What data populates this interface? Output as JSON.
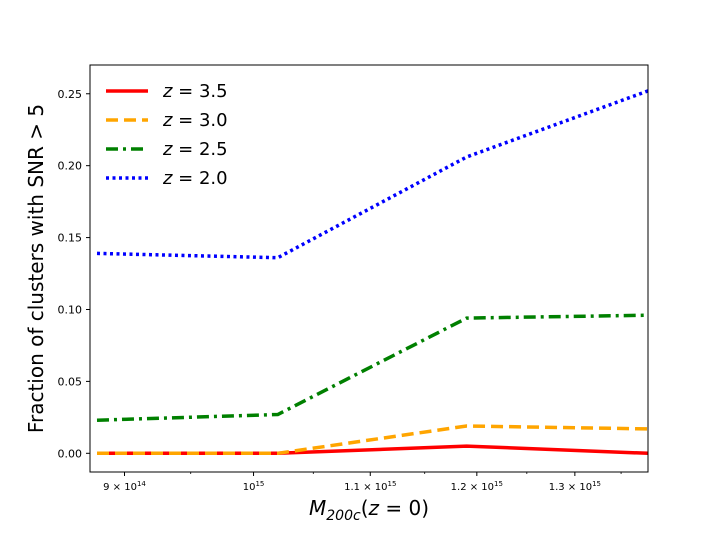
{
  "chart_data": {
    "type": "line",
    "title": "",
    "xlabel": "M_{200c}(z = 0)",
    "ylabel": "Fraction of clusters with SNR > 5",
    "x_scale": "log",
    "xlim": [
      875000000000000.0,
      1380000000000000.0
    ],
    "ylim": [
      -0.013,
      0.27
    ],
    "grid": false,
    "legend_position": "upper-left",
    "x": [
      880000000000000.0,
      1020000000000000.0,
      1190000000000000.0,
      1380000000000000.0
    ],
    "xticks": [
      {
        "value": 900000000000000.0,
        "mantissa": "9 × 10",
        "exponent": "14"
      },
      {
        "value": 1000000000000000.0,
        "mantissa": "10",
        "exponent": "15"
      },
      {
        "value": 1100000000000000.0,
        "mantissa": "1.1 × 10",
        "exponent": "15"
      },
      {
        "value": 1200000000000000.0,
        "mantissa": "1.2 × 10",
        "exponent": "15"
      },
      {
        "value": 1300000000000000.0,
        "mantissa": "1.3 × 10",
        "exponent": "15"
      }
    ],
    "yticks": [
      {
        "value": 0.0,
        "label": "0.00"
      },
      {
        "value": 0.05,
        "label": "0.05"
      },
      {
        "value": 0.1,
        "label": "0.10"
      },
      {
        "value": 0.15,
        "label": "0.15"
      },
      {
        "value": 0.2,
        "label": "0.20"
      },
      {
        "value": 0.25,
        "label": "0.25"
      }
    ],
    "series": [
      {
        "name": "z = 3.5",
        "z": "3.5",
        "color": "#ff0000",
        "style": "solid",
        "values": [
          0.0,
          0.0,
          0.005,
          0.0
        ]
      },
      {
        "name": "z = 3.0",
        "z": "3.0",
        "color": "#ffa500",
        "style": "dashed",
        "values": [
          0.0,
          0.0,
          0.019,
          0.017
        ]
      },
      {
        "name": "z = 2.5",
        "z": "2.5",
        "color": "#008000",
        "style": "dashdot",
        "values": [
          0.023,
          0.027,
          0.094,
          0.096
        ]
      },
      {
        "name": "z = 2.0",
        "z": "2.0",
        "color": "#0000ff",
        "style": "dotted",
        "values": [
          0.139,
          0.136,
          0.206,
          0.252
        ]
      }
    ]
  }
}
